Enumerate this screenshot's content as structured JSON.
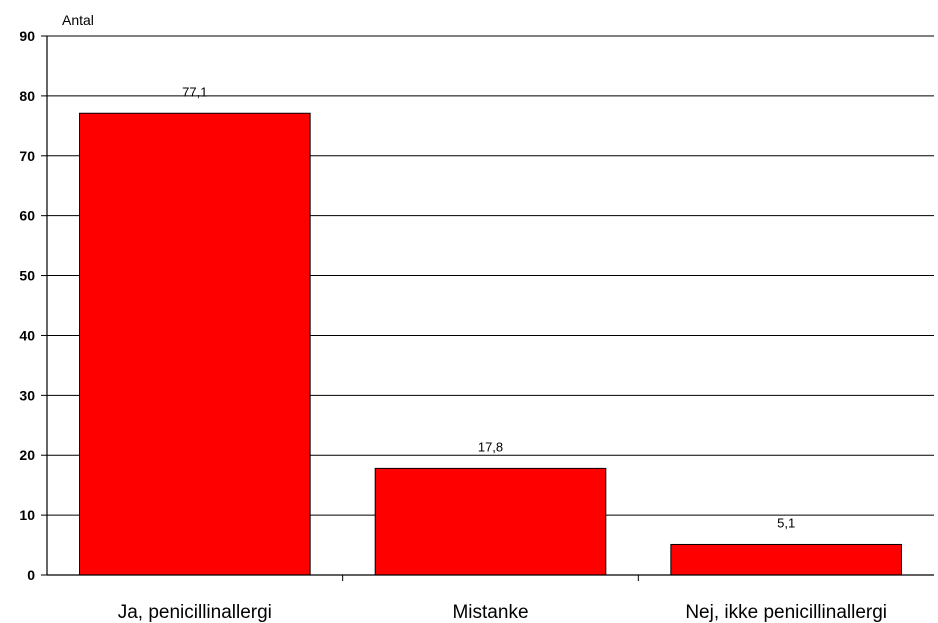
{
  "chart_data": {
    "type": "bar",
    "ylabel": "Antal",
    "categories": [
      "Ja, penicillinallergi",
      "Mistanke",
      "Nej, ikke penicillinallergi"
    ],
    "values": [
      77.1,
      17.8,
      5.1
    ],
    "value_labels": [
      "77,1",
      "17,8",
      "5,1"
    ],
    "ylim": [
      0,
      90
    ],
    "yticks": [
      0,
      10,
      20,
      30,
      40,
      50,
      60,
      70,
      80,
      90
    ],
    "grid": true,
    "legend": "none",
    "bar_color": "#ff0000",
    "bar_edge_color": "#000000"
  }
}
